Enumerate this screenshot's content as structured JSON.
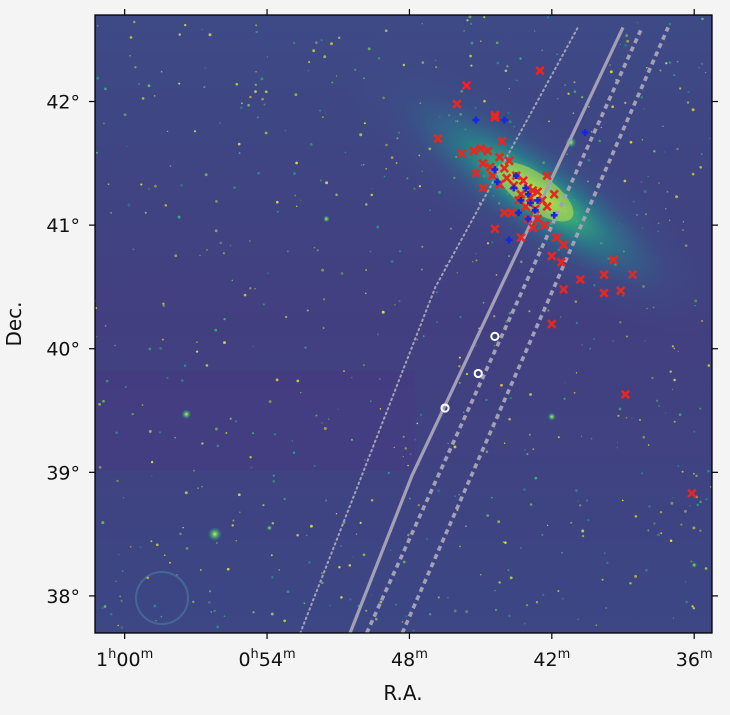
{
  "chart_data": {
    "type": "scatter",
    "title": "",
    "xlabel": "R.A.",
    "ylabel": "Dec.",
    "x_unit": "minutes of right ascension",
    "x_reversed": true,
    "xlim": [
      61.25,
      35.25
    ],
    "ylim": [
      37.7,
      42.7
    ],
    "grid": false,
    "x_ticks": [
      {
        "value": 60,
        "hour": "1",
        "min": "00",
        "sup_h": "h",
        "sup_m": "m"
      },
      {
        "value": 54,
        "hour": "0",
        "min": "54",
        "sup_h": "h",
        "sup_m": "m"
      },
      {
        "value": 48,
        "hour": "",
        "min": "48",
        "sup_h": "",
        "sup_m": "m"
      },
      {
        "value": 42,
        "hour": "",
        "min": "42",
        "sup_h": "",
        "sup_m": "m"
      },
      {
        "value": 36,
        "hour": "",
        "min": "36",
        "sup_h": "",
        "sup_m": "m"
      }
    ],
    "y_ticks": [
      {
        "value": 38,
        "label": "38°"
      },
      {
        "value": 39,
        "label": "39°"
      },
      {
        "value": 40,
        "label": "40°"
      },
      {
        "value": 41,
        "label": "41°"
      },
      {
        "value": 42,
        "label": "42°"
      }
    ],
    "background": {
      "description_colormap": "viridis",
      "galaxy_center": [
        42.7,
        41.27
      ],
      "bright_sources": [
        {
          "ra": 56.2,
          "dec": 38.5,
          "size": 1.0
        },
        {
          "ra": 57.4,
          "dec": 39.47,
          "size": 0.7
        },
        {
          "ra": 41.2,
          "dec": 41.67,
          "size": 0.8
        },
        {
          "ra": 42.0,
          "dec": 39.45,
          "size": 0.6
        },
        {
          "ra": 51.5,
          "dec": 41.05,
          "size": 0.5
        },
        {
          "ra": 53.9,
          "dec": 38.55,
          "size": 0.4
        },
        {
          "ra": 36.0,
          "dec": 38.25,
          "size": 0.4
        }
      ]
    },
    "series": [
      {
        "marker": "x",
        "color": "#e8271f",
        "points": [
          [
            42.5,
            42.25
          ],
          [
            45.6,
            42.13
          ],
          [
            46.0,
            41.98
          ],
          [
            44.4,
            41.89
          ],
          [
            44.4,
            41.87
          ],
          [
            46.8,
            41.7
          ],
          [
            45.0,
            41.62
          ],
          [
            45.3,
            41.6
          ],
          [
            44.7,
            41.6
          ],
          [
            44.2,
            41.55
          ],
          [
            43.8,
            41.52
          ],
          [
            45.8,
            41.58
          ],
          [
            44.9,
            41.5
          ],
          [
            44.6,
            41.47
          ],
          [
            44.0,
            41.46
          ],
          [
            45.2,
            41.42
          ],
          [
            44.5,
            41.4
          ],
          [
            43.9,
            41.38
          ],
          [
            43.5,
            41.4
          ],
          [
            43.2,
            41.36
          ],
          [
            44.2,
            41.33
          ],
          [
            43.6,
            41.32
          ],
          [
            43.0,
            41.3
          ],
          [
            42.8,
            41.28
          ],
          [
            43.3,
            41.25
          ],
          [
            42.6,
            41.27
          ],
          [
            42.9,
            41.22
          ],
          [
            43.4,
            41.2
          ],
          [
            42.4,
            41.2
          ],
          [
            43.1,
            41.15
          ],
          [
            42.7,
            41.13
          ],
          [
            42.2,
            41.15
          ],
          [
            41.9,
            41.25
          ],
          [
            42.6,
            41.05
          ],
          [
            43.0,
            41.05
          ],
          [
            42.3,
            41.0
          ],
          [
            42.8,
            40.98
          ],
          [
            43.3,
            40.9
          ],
          [
            44.4,
            40.97
          ],
          [
            44.9,
            41.3
          ],
          [
            41.8,
            40.9
          ],
          [
            41.5,
            40.84
          ],
          [
            42.0,
            40.75
          ],
          [
            41.6,
            40.7
          ],
          [
            40.8,
            40.56
          ],
          [
            39.4,
            40.72
          ],
          [
            39.8,
            40.6
          ],
          [
            38.6,
            40.6
          ],
          [
            41.5,
            40.48
          ],
          [
            39.1,
            40.47
          ],
          [
            39.8,
            40.45
          ],
          [
            42.0,
            40.2
          ],
          [
            38.9,
            39.63
          ],
          [
            36.1,
            38.83
          ],
          [
            44.1,
            41.68
          ],
          [
            44.0,
            41.1
          ],
          [
            42.2,
            41.4
          ],
          [
            43.7,
            41.1
          ]
        ]
      },
      {
        "marker": "+",
        "color": "#1428e0",
        "points": [
          [
            45.2,
            41.85
          ],
          [
            44.0,
            41.85
          ],
          [
            40.6,
            41.75
          ],
          [
            44.3,
            41.35
          ],
          [
            43.6,
            41.3
          ],
          [
            43.3,
            41.2
          ],
          [
            42.9,
            41.18
          ],
          [
            43.0,
            41.25
          ],
          [
            42.7,
            41.12
          ],
          [
            43.4,
            41.1
          ],
          [
            43.1,
            41.3
          ],
          [
            42.6,
            41.2
          ],
          [
            41.9,
            41.08
          ],
          [
            43.8,
            40.88
          ],
          [
            43.0,
            41.05
          ],
          [
            44.4,
            41.45
          ],
          [
            43.5,
            41.4
          ]
        ]
      },
      {
        "marker": "o",
        "color": "#ffffff",
        "points": [
          [
            44.4,
            40.1
          ],
          [
            45.1,
            39.8
          ],
          [
            46.5,
            39.52
          ]
        ]
      }
    ],
    "lines": [
      {
        "style": "solid",
        "color": "#a3a0b6",
        "points": [
          [
            50.5,
            37.7
          ],
          [
            47.9,
            38.97
          ],
          [
            39.0,
            42.6
          ]
        ]
      },
      {
        "style": "dotted",
        "color": "#a3a0b6",
        "points": [
          [
            52.6,
            37.7
          ],
          [
            46.9,
            40.5
          ],
          [
            40.9,
            42.6
          ]
        ]
      },
      {
        "style": "dashed",
        "color": "#a3a0b6",
        "points": [
          [
            49.8,
            37.7
          ],
          [
            38.2,
            42.6
          ]
        ]
      },
      {
        "style": "dashed",
        "color": "#a3a0b6",
        "points": [
          [
            48.3,
            37.7
          ],
          [
            37.1,
            42.6
          ]
        ]
      }
    ]
  },
  "colors": {
    "sky_dark": "#3b3f7e",
    "sky_mid": "#46327e",
    "galaxy_mid": "#2c8c8a",
    "galaxy_core": "#b6de2b",
    "frame": "#000000"
  }
}
